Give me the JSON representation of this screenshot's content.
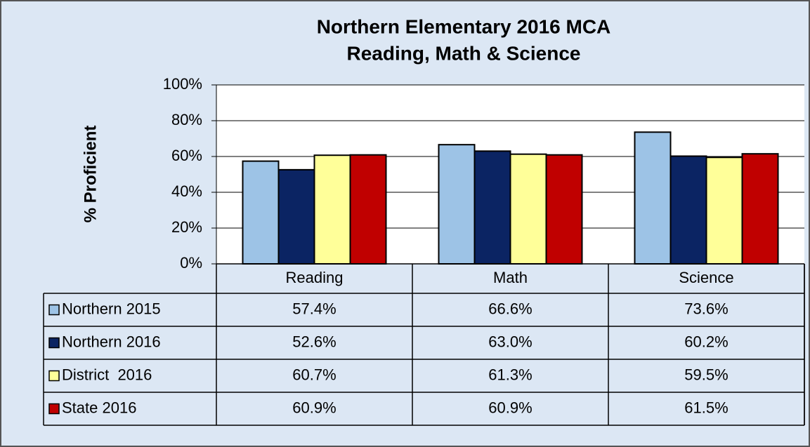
{
  "chart_data": {
    "type": "bar",
    "title": "Northern Elementary 2016 MCA",
    "subtitle": "Reading, Math & Science",
    "y_label": "% Proficient",
    "categories": [
      "Reading",
      "Math",
      "Science"
    ],
    "series": [
      {
        "name": "Northern 2015",
        "color": "#9dc3e6",
        "values": [
          57.4,
          66.6,
          73.6
        ],
        "value_labels": [
          "57.4%",
          "66.6%",
          "73.6%"
        ]
      },
      {
        "name": "Northern 2016",
        "color": "#0b2463",
        "values": [
          52.6,
          63.0,
          60.2
        ],
        "value_labels": [
          "52.6%",
          "63.0%",
          "60.2%"
        ]
      },
      {
        "name": "District  2016",
        "color": "#ffff99",
        "values": [
          60.7,
          61.3,
          59.5
        ],
        "value_labels": [
          "60.7%",
          "61.3%",
          "59.5%"
        ]
      },
      {
        "name": "State 2016",
        "color": "#c00000",
        "values": [
          60.9,
          60.9,
          61.5
        ],
        "value_labels": [
          "60.9%",
          "60.9%",
          "61.5%"
        ]
      }
    ],
    "ylim": [
      0,
      100
    ],
    "yticks": [
      {
        "value": 0,
        "label": "0%"
      },
      {
        "value": 20,
        "label": "20%"
      },
      {
        "value": 40,
        "label": "40%"
      },
      {
        "value": 60,
        "label": "60%"
      },
      {
        "value": 80,
        "label": "80%"
      },
      {
        "value": 100,
        "label": "100%"
      }
    ],
    "grid": true,
    "data_table": true
  }
}
